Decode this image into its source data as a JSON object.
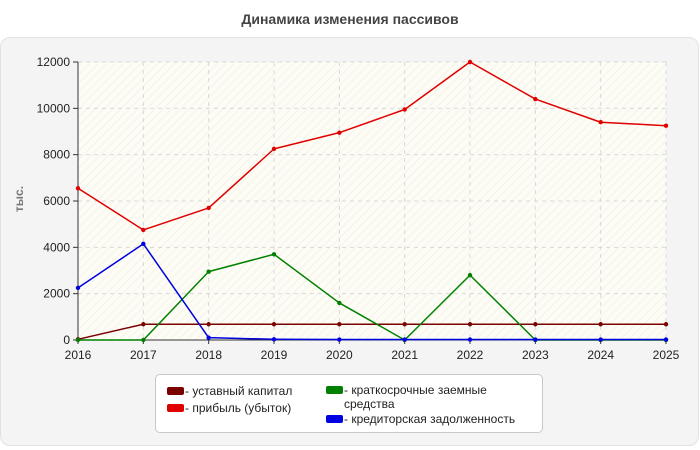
{
  "title": "Динамика изменения пассивов",
  "chart_data": {
    "type": "line",
    "title": "Динамика изменения пассивов",
    "xlabel": "",
    "ylabel": "тыс.",
    "categories": [
      "2016",
      "2017",
      "2018",
      "2019",
      "2020",
      "2021",
      "2022",
      "2023",
      "2024",
      "2025"
    ],
    "ylim": [
      0,
      12000
    ],
    "yticks": [
      0,
      2000,
      4000,
      6000,
      8000,
      10000,
      12000
    ],
    "grid": true,
    "legend_position": "bottom",
    "series": [
      {
        "name": "- уставный капитал",
        "color": "#7a0000",
        "values": [
          30,
          680,
          680,
          680,
          680,
          680,
          680,
          680,
          680,
          680
        ]
      },
      {
        "name": "- прибыль (убыток)",
        "color": "#e00000",
        "values": [
          6550,
          4750,
          5700,
          8250,
          8950,
          9950,
          12000,
          10400,
          9400,
          9250
        ]
      },
      {
        "name": "- краткосрочные заемные средства",
        "color": "#008000",
        "values": [
          0,
          0,
          2950,
          3700,
          1600,
          0,
          2800,
          0,
          0,
          0
        ]
      },
      {
        "name": "- кредиторская задолженность",
        "color": "#0000e0",
        "values": [
          2250,
          4150,
          100,
          30,
          20,
          20,
          20,
          20,
          20,
          20
        ]
      }
    ]
  },
  "legend": {
    "items": [
      {
        "label": "- уставный капитал",
        "color": "#7a0000"
      },
      {
        "label": "- прибыль (убыток)",
        "color": "#e00000"
      },
      {
        "label_line1": "- краткосрочные заемные",
        "label_line2": "средства",
        "color": "#008000"
      },
      {
        "label": "- кредиторская задолженность",
        "color": "#0000e0"
      }
    ]
  }
}
